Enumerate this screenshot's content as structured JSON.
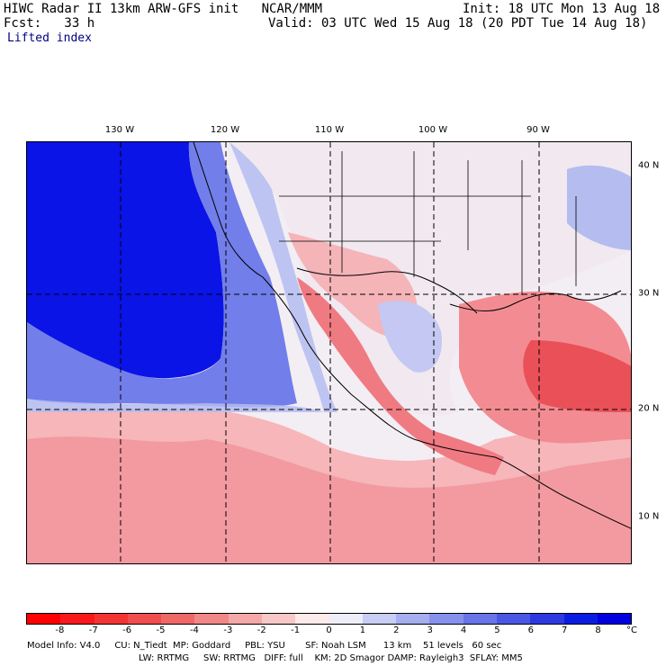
{
  "header": {
    "line1_left": "HIWC Radar II 13km ARW-GFS init   NCAR/MMM",
    "line1_right": "Init: 18 UTC Mon 13 Aug 18",
    "line2_left": "Fcst:   33 h",
    "line2_right": "Valid: 03 UTC Wed 15 Aug 18 (20 PDT Tue 14 Aug 18)",
    "field": "Lifted index"
  },
  "map": {
    "lon_labels": [
      "130 W",
      "120 W",
      "110 W",
      "100 W",
      "90 W"
    ],
    "lat_labels": [
      "40 N",
      "30 N",
      "20 N",
      "10 N"
    ],
    "colors": {
      "deep_blue": "#0a14e6",
      "mid_blue": "#5a6ae6",
      "light_blue": "#b4bcf0",
      "pale": "#f4f0f6",
      "light_red": "#f5b4b8",
      "mid_red": "#f07a82",
      "strong_red": "#e8323c"
    }
  },
  "colorbar": {
    "ticks": [
      "-8",
      "-7",
      "-6",
      "-5",
      "-4",
      "-3",
      "-2",
      "-1",
      "0",
      "1",
      "2",
      "3",
      "4",
      "5",
      "6",
      "7",
      "8"
    ],
    "unit": "°C",
    "colors": [
      "#ff0000",
      "#f81a1a",
      "#f43434",
      "#f04e4e",
      "#ee6868",
      "#f08888",
      "#f4a8a8",
      "#f8c8c8",
      "#fdeaea",
      "#eeeefa",
      "#c8cdf3",
      "#a6aef0",
      "#8791ec",
      "#6874e8",
      "#4a57e4",
      "#2c3ae0",
      "#0a1de0",
      "#0000e0"
    ]
  },
  "footer": {
    "line1": "Model Info: V4.0     CU: N_Tiedt  MP: Goddard     PBL: YSU       SF: Noah LSM      13 km    51 levels   60 sec",
    "line2": "LW: RRTMG     SW: RRTMG   DIFF: full    KM: 2D Smagor DAMP: Rayleigh3  SFLAY: MM5"
  }
}
